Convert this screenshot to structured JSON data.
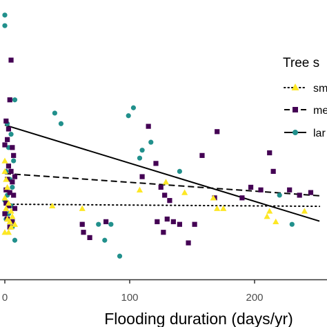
{
  "chart_data": {
    "type": "scatter",
    "xlabel": "Flooding duration (days/yr)",
    "x_tick_labels": [
      "0",
      "100",
      "200"
    ],
    "x_ticks": [
      0,
      100,
      200
    ],
    "xlim": [
      -2,
      252
    ],
    "ylim": [
      0,
      1
    ],
    "grid": false,
    "legend": {
      "title": "Tree s",
      "position": "right",
      "entries": [
        {
          "label": "sm",
          "series": "small"
        },
        {
          "label": "me",
          "series": "medium"
        },
        {
          "label": "lar",
          "series": "large"
        }
      ]
    },
    "series": [
      {
        "key": "small",
        "color": "#FDE725",
        "marker": "triangle",
        "line_style": "dotted",
        "fit": [
          [
            0,
            0.276
          ],
          [
            252,
            0.268
          ]
        ],
        "points": [
          [
            0,
            0.44
          ],
          [
            0,
            0.4
          ],
          [
            1,
            0.37
          ],
          [
            2,
            0.34
          ],
          [
            0,
            0.3
          ],
          [
            3,
            0.28
          ],
          [
            1,
            0.26
          ],
          [
            5,
            0.25
          ],
          [
            2,
            0.22
          ],
          [
            4,
            0.21
          ],
          [
            6,
            0.23
          ],
          [
            8,
            0.2
          ],
          [
            0,
            0.17
          ],
          [
            3,
            0.17
          ],
          [
            5,
            0.19
          ],
          [
            38,
            0.27
          ],
          [
            62,
            0.26
          ],
          [
            108,
            0.33
          ],
          [
            129,
            0.36
          ],
          [
            144,
            0.32
          ],
          [
            167,
            0.3
          ],
          [
            170,
            0.26
          ],
          [
            175,
            0.26
          ],
          [
            210,
            0.23
          ],
          [
            212,
            0.25
          ],
          [
            217,
            0.21
          ],
          [
            240,
            0.25
          ]
        ]
      },
      {
        "key": "medium",
        "color": "#440154",
        "marker": "square",
        "line_style": "dashed",
        "fit": [
          [
            0,
            0.392
          ],
          [
            252,
            0.308
          ]
        ],
        "points": [
          [
            5,
            0.82
          ],
          [
            4,
            0.67
          ],
          [
            1,
            0.59
          ],
          [
            3,
            0.56
          ],
          [
            2,
            0.52
          ],
          [
            0,
            0.5
          ],
          [
            6,
            0.49
          ],
          [
            7,
            0.46
          ],
          [
            3,
            0.42
          ],
          [
            5,
            0.4
          ],
          [
            8,
            0.38
          ],
          [
            2,
            0.37
          ],
          [
            6,
            0.36
          ],
          [
            1,
            0.33
          ],
          [
            4,
            0.32
          ],
          [
            7,
            0.31
          ],
          [
            1,
            0.28
          ],
          [
            3,
            0.27
          ],
          [
            8,
            0.26
          ],
          [
            0,
            0.24
          ],
          [
            2,
            0.22
          ],
          [
            6,
            0.21
          ],
          [
            4,
            0.19
          ],
          [
            62,
            0.2
          ],
          [
            63,
            0.17
          ],
          [
            68,
            0.15
          ],
          [
            81,
            0.21
          ],
          [
            110,
            0.38
          ],
          [
            115,
            0.57
          ],
          [
            121,
            0.43
          ],
          [
            125,
            0.34
          ],
          [
            128,
            0.31
          ],
          [
            132,
            0.29
          ],
          [
            122,
            0.21
          ],
          [
            127,
            0.17
          ],
          [
            130,
            0.22
          ],
          [
            135,
            0.21
          ],
          [
            140,
            0.2
          ],
          [
            152,
            0.2
          ],
          [
            147,
            0.13
          ],
          [
            158,
            0.46
          ],
          [
            168,
            0.3
          ],
          [
            170,
            0.55
          ],
          [
            190,
            0.3
          ],
          [
            197,
            0.34
          ],
          [
            205,
            0.33
          ],
          [
            212,
            0.47
          ],
          [
            215,
            0.4
          ],
          [
            228,
            0.33
          ],
          [
            236,
            0.31
          ],
          [
            245,
            0.32
          ]
        ]
      },
      {
        "key": "large",
        "color": "#21908C",
        "marker": "circle",
        "line_style": "solid",
        "fit": [
          [
            0,
            0.575
          ],
          [
            252,
            0.212
          ]
        ],
        "points": [
          [
            0,
            0.99
          ],
          [
            0,
            0.95
          ],
          [
            8,
            0.67
          ],
          [
            2,
            0.58
          ],
          [
            5,
            0.54
          ],
          [
            3,
            0.49
          ],
          [
            7,
            0.44
          ],
          [
            1,
            0.4
          ],
          [
            4,
            0.37
          ],
          [
            6,
            0.34
          ],
          [
            2,
            0.31
          ],
          [
            0,
            0.29
          ],
          [
            5,
            0.27
          ],
          [
            3,
            0.24
          ],
          [
            1,
            0.22
          ],
          [
            6,
            0.19
          ],
          [
            8,
            0.14
          ],
          [
            40,
            0.62
          ],
          [
            45,
            0.58
          ],
          [
            62,
            0.2
          ],
          [
            75,
            0.2
          ],
          [
            85,
            0.2
          ],
          [
            80,
            0.14
          ],
          [
            92,
            0.08
          ],
          [
            99,
            0.61
          ],
          [
            103,
            0.64
          ],
          [
            108,
            0.45
          ],
          [
            110,
            0.48
          ],
          [
            117,
            0.51
          ],
          [
            140,
            0.4
          ],
          [
            220,
            0.31
          ],
          [
            230,
            0.2
          ]
        ]
      }
    ]
  }
}
